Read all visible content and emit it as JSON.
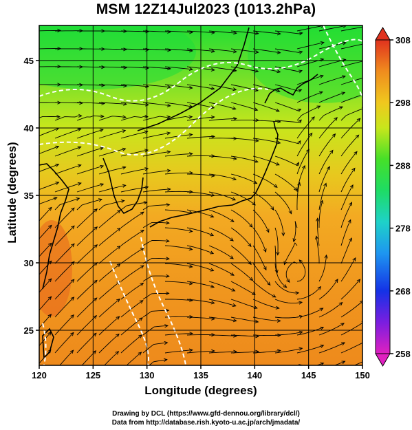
{
  "title": "MSM 12Z14Jul2023 (1013.2hPa)",
  "axes": {
    "xlabel": "Longitude (degrees)",
    "ylabel": "Latitude  (degrees)",
    "x_ticks": [
      "120",
      "125",
      "130",
      "135",
      "140",
      "145",
      "150"
    ],
    "y_ticks": [
      "25",
      "30",
      "35",
      "40",
      "45"
    ],
    "xlim": [
      120,
      150
    ],
    "ylim": [
      22.4,
      47.6
    ]
  },
  "colorbar": {
    "ticks": [
      "258",
      "268",
      "278",
      "288",
      "298",
      "308"
    ],
    "range": [
      258,
      308
    ]
  },
  "credits": {
    "line1": "Drawing by DCL (https://www.gfd-dennou.org/library/dcl/)",
    "line2": "Data from http://database.rish.kyoto-u.ac.jp/arch/jmadata/"
  },
  "colors": {
    "cold_north": "#22dd33",
    "mid": "#cce81a",
    "warm_south": "#f0961e",
    "contour": "#ffffff",
    "streamline": "#000000"
  }
}
